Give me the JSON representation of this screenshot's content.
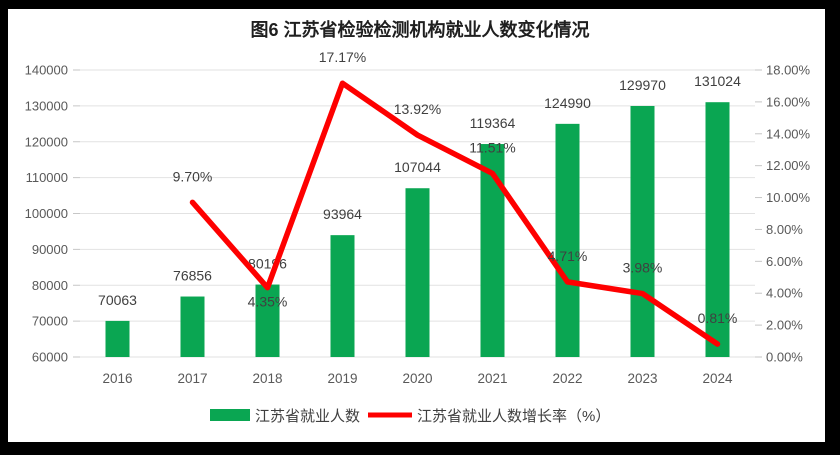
{
  "frame": {
    "border_color": "#000000",
    "chart_bg": "#ffffff"
  },
  "chart_data": {
    "type": "bar+line",
    "title": "图6  江苏省检验检测机构就业人数变化情况",
    "categories": [
      "2016",
      "2017",
      "2018",
      "2019",
      "2020",
      "2021",
      "2022",
      "2023",
      "2024"
    ],
    "series": [
      {
        "name": "江苏省就业人数",
        "type": "bar",
        "axis": "left",
        "color": "#0aa652",
        "values": [
          70063,
          76856,
          80196,
          93964,
          107044,
          119364,
          124990,
          129970,
          131024
        ],
        "labels": [
          "70063",
          "76856",
          "80196",
          "93964",
          "107044",
          "119364",
          "124990",
          "129970",
          "131024"
        ]
      },
      {
        "name": "江苏省就业人数增长率（%）",
        "type": "line",
        "axis": "right",
        "color": "#fe0000",
        "values": [
          null,
          9.7,
          4.35,
          17.17,
          13.92,
          11.51,
          4.71,
          3.98,
          0.81
        ],
        "labels": [
          "",
          "9.70%",
          "4.35%",
          "17.17%",
          "13.92%",
          "11.51%",
          "4.71%",
          "3.98%",
          "0.81%"
        ]
      }
    ],
    "axes": {
      "left": {
        "min": 60000,
        "max": 140000,
        "tick_step": 10000,
        "tick_labels": [
          "60000",
          "70000",
          "80000",
          "90000",
          "100000",
          "110000",
          "120000",
          "130000",
          "140000"
        ]
      },
      "right": {
        "min": 0,
        "max": 18,
        "tick_step": 2,
        "tick_labels": [
          "0.00%",
          "2.00%",
          "4.00%",
          "6.00%",
          "8.00%",
          "10.00%",
          "12.00%",
          "14.00%",
          "16.00%",
          "18.00%"
        ]
      }
    },
    "grid": true,
    "legend_position": "bottom",
    "colors": {
      "gridline": "#e2e2e2",
      "tick": "#c6c6c6",
      "axis_text": "#595959",
      "label_text": "#404040",
      "title_text": "#1f1f1f"
    }
  }
}
